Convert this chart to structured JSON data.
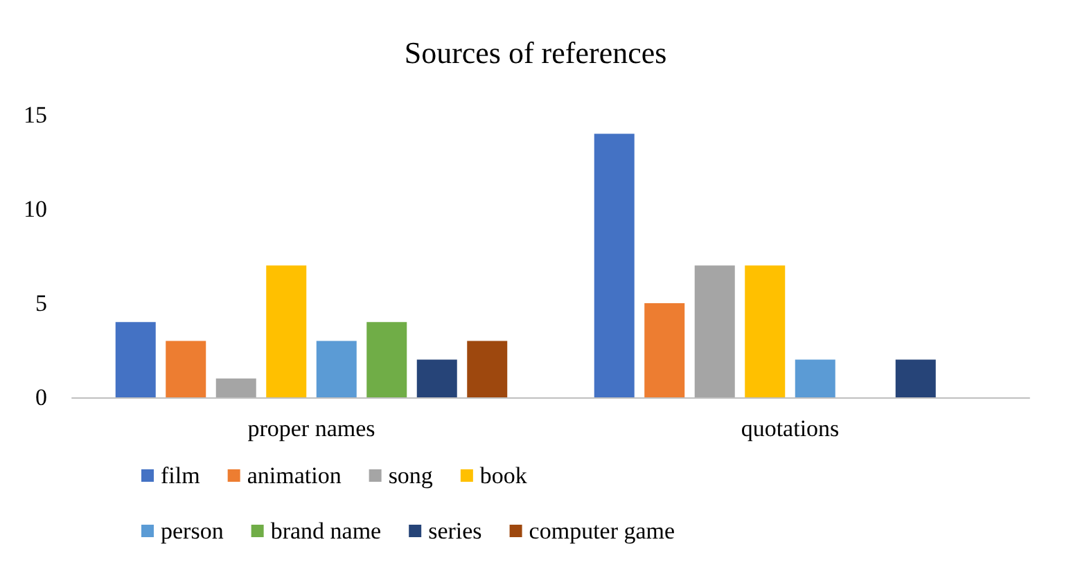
{
  "chart_data": {
    "type": "bar",
    "title": "Sources of references",
    "categories": [
      "proper names",
      "quotations"
    ],
    "series": [
      {
        "name": "film",
        "color": "#4472c4",
        "values": [
          4,
          14
        ]
      },
      {
        "name": "animation",
        "color": "#ed7d31",
        "values": [
          3,
          5
        ]
      },
      {
        "name": "song",
        "color": "#a5a5a5",
        "values": [
          1,
          7
        ]
      },
      {
        "name": "book",
        "color": "#ffc000",
        "values": [
          7,
          7
        ]
      },
      {
        "name": "person",
        "color": "#5b9bd5",
        "values": [
          3,
          2
        ]
      },
      {
        "name": "brand name",
        "color": "#70ad47",
        "values": [
          4,
          0
        ]
      },
      {
        "name": "series",
        "color": "#264478",
        "values": [
          2,
          2
        ]
      },
      {
        "name": "computer game",
        "color": "#9e480e",
        "values": [
          3,
          0
        ]
      }
    ],
    "ylim": [
      0,
      15
    ],
    "yticks": [
      0,
      5,
      10,
      15
    ],
    "grid": false,
    "legend": "bottom"
  }
}
